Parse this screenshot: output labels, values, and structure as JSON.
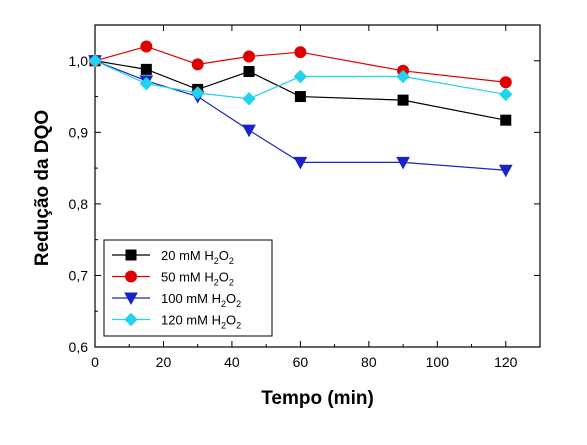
{
  "chart_data": {
    "type": "line",
    "title": "",
    "xlabel": "Tempo (min)",
    "ylabel": "Redução da DQO",
    "xlim": [
      0,
      130
    ],
    "ylim": [
      0.6,
      1.05
    ],
    "x_ticks": [
      "0",
      "20",
      "40",
      "60",
      "80",
      "100",
      "120"
    ],
    "y_ticks": [
      "0,6",
      "0,7",
      "0,8",
      "0,9",
      "1,0"
    ],
    "grid": false,
    "legend_position": "bottom-left",
    "x": [
      0,
      15,
      30,
      45,
      60,
      90,
      120
    ],
    "series": [
      {
        "name": "20 mM H2O2",
        "label_main": "20 mM H",
        "label_sub1": "2",
        "label_mid": "O",
        "label_sub2": "2",
        "color": "#000000",
        "marker": "square",
        "values": [
          1.0,
          0.988,
          0.96,
          0.985,
          0.95,
          0.945,
          0.917
        ]
      },
      {
        "name": "50 mM H2O2",
        "label_main": "50 mM H",
        "label_sub1": "2",
        "label_mid": "O",
        "label_sub2": "2",
        "color": "#e00000",
        "marker": "circle",
        "values": [
          1.0,
          1.02,
          0.995,
          1.006,
          1.012,
          0.986,
          0.97
        ]
      },
      {
        "name": "100 mM H2O2",
        "label_main": "100 mM H",
        "label_sub1": "2",
        "label_mid": "O",
        "label_sub2": "2",
        "color": "#1a23c8",
        "marker": "triangle-down",
        "values": [
          1.0,
          0.972,
          0.95,
          0.903,
          0.858,
          0.858,
          0.847
        ]
      },
      {
        "name": "120 mM H2O2",
        "label_main": "120 mM H",
        "label_sub1": "2",
        "label_mid": "O",
        "label_sub2": "2",
        "color": "#22d3ee",
        "marker": "diamond",
        "values": [
          1.0,
          0.968,
          0.955,
          0.947,
          0.978,
          0.978,
          0.953
        ]
      }
    ]
  }
}
